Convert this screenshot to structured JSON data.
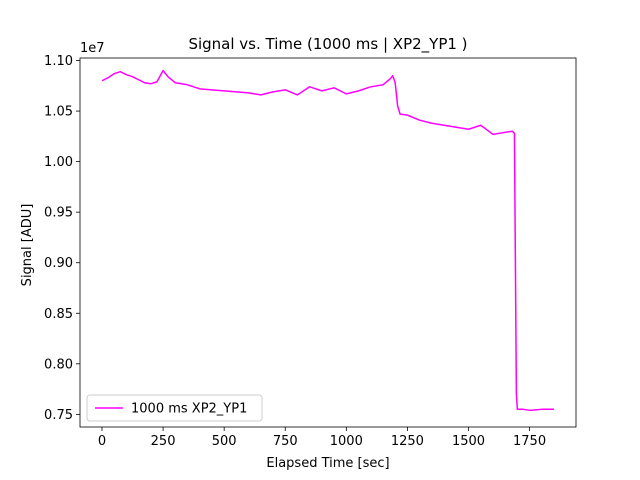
{
  "chart_data": {
    "type": "line",
    "title": "Signal vs. Time (1000 ms | XP2_YP1 )",
    "xlabel": "Elapsed Time [sec]",
    "ylabel": "Signal [ADU]",
    "y_offset_label": "1e7",
    "y_scale": 10000000,
    "xlim": [
      -90,
      1940
    ],
    "ylim": [
      0.7375,
      1.1025
    ],
    "xticks": [
      0,
      250,
      500,
      750,
      1000,
      1250,
      1500,
      1750
    ],
    "xtick_labels": [
      "0",
      "250",
      "500",
      "750",
      "1000",
      "1250",
      "1500",
      "1750"
    ],
    "yticks": [
      0.75,
      0.8,
      0.85,
      0.9,
      0.95,
      1.0,
      1.05,
      1.1
    ],
    "ytick_labels": [
      "0.75",
      "0.80",
      "0.85",
      "0.90",
      "0.95",
      "1.00",
      "1.05",
      "1.10"
    ],
    "grid": false,
    "legend_position": "lower-left",
    "series": [
      {
        "name": "1000 ms XP2_YP1",
        "color": "#ff00ff",
        "points": [
          [
            0,
            1.08
          ],
          [
            25,
            1.083
          ],
          [
            50,
            1.087
          ],
          [
            75,
            1.089
          ],
          [
            100,
            1.086
          ],
          [
            125,
            1.084
          ],
          [
            150,
            1.081
          ],
          [
            175,
            1.078
          ],
          [
            200,
            1.077
          ],
          [
            225,
            1.079
          ],
          [
            250,
            1.09
          ],
          [
            270,
            1.084
          ],
          [
            300,
            1.078
          ],
          [
            350,
            1.076
          ],
          [
            400,
            1.072
          ],
          [
            450,
            1.071
          ],
          [
            500,
            1.07
          ],
          [
            550,
            1.069
          ],
          [
            600,
            1.068
          ],
          [
            650,
            1.066
          ],
          [
            700,
            1.069
          ],
          [
            750,
            1.071
          ],
          [
            800,
            1.066
          ],
          [
            850,
            1.074
          ],
          [
            900,
            1.07
          ],
          [
            950,
            1.073
          ],
          [
            1000,
            1.067
          ],
          [
            1050,
            1.07
          ],
          [
            1100,
            1.074
          ],
          [
            1150,
            1.076
          ],
          [
            1180,
            1.082
          ],
          [
            1190,
            1.085
          ],
          [
            1200,
            1.078
          ],
          [
            1210,
            1.055
          ],
          [
            1220,
            1.047
          ],
          [
            1250,
            1.046
          ],
          [
            1300,
            1.041
          ],
          [
            1350,
            1.038
          ],
          [
            1400,
            1.036
          ],
          [
            1450,
            1.034
          ],
          [
            1500,
            1.032
          ],
          [
            1550,
            1.036
          ],
          [
            1600,
            1.027
          ],
          [
            1650,
            1.029
          ],
          [
            1680,
            1.03
          ],
          [
            1688,
            1.028
          ],
          [
            1692,
            0.9
          ],
          [
            1696,
            0.77
          ],
          [
            1700,
            0.755
          ],
          [
            1725,
            0.755
          ],
          [
            1750,
            0.754
          ],
          [
            1800,
            0.755
          ],
          [
            1850,
            0.755
          ]
        ]
      }
    ]
  }
}
